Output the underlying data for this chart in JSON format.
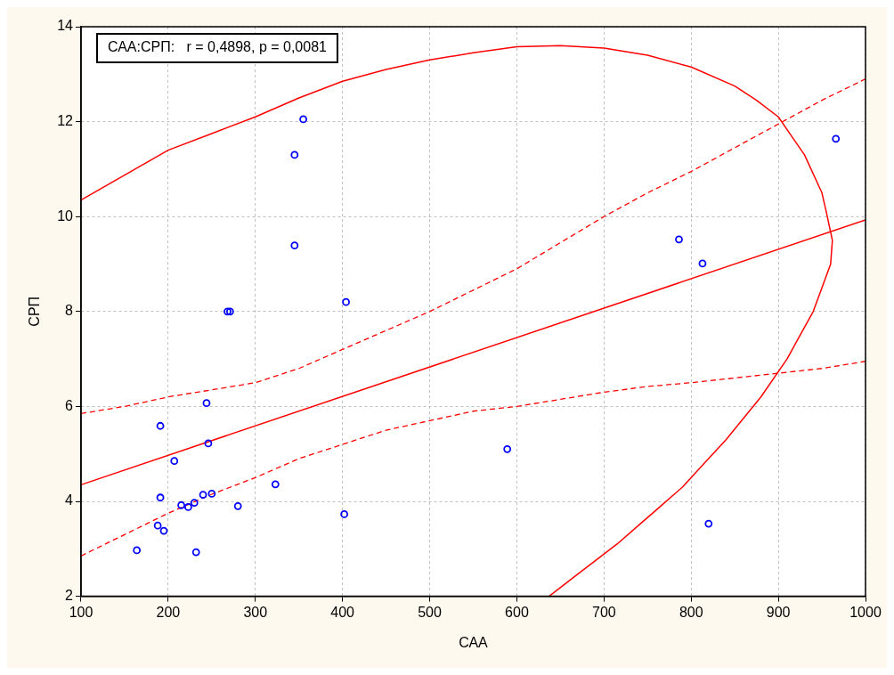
{
  "chart_data": {
    "type": "scatter",
    "xlabel": "САА",
    "ylabel": "СРП",
    "annotations": [
      "САА:СРП:   r = 0,4898, p = 0,0081"
    ],
    "xlim": [
      100,
      1000
    ],
    "xticks": [
      100,
      200,
      300,
      400,
      500,
      600,
      700,
      800,
      900,
      1000
    ],
    "ylim": [
      2,
      14
    ],
    "yticks": [
      2,
      4,
      6,
      8,
      10,
      12,
      14
    ],
    "grid": true,
    "legend": false,
    "series": [
      {
        "color": "#0000ff",
        "marker": "circle",
        "x": [
          164,
          188,
          195,
          191,
          191,
          207,
          215,
          223,
          230,
          232,
          240,
          244,
          246,
          250,
          268,
          271,
          280,
          323,
          345,
          345,
          355,
          402,
          404,
          589,
          786,
          813,
          820,
          966
        ],
        "values": [
          2.97,
          3.49,
          3.38,
          5.59,
          4.08,
          4.85,
          3.92,
          3.88,
          3.97,
          2.93,
          4.14,
          6.07,
          5.22,
          4.16,
          8.0,
          8.0,
          3.9,
          4.36,
          11.3,
          9.39,
          12.05,
          3.73,
          8.2,
          5.1,
          9.52,
          9.01,
          3.53,
          11.64
        ]
      },
      {
        "type": "line",
        "color": "#ff0000",
        "line_style": "solid",
        "x": [
          100,
          1000
        ],
        "values": [
          4.35,
          9.93
        ]
      },
      {
        "type": "line",
        "color": "#ff0000",
        "line_style": "dashed",
        "x": [
          100,
          150,
          200,
          250,
          300,
          350,
          400,
          450,
          500,
          550,
          600,
          650,
          700,
          750,
          800,
          850,
          900,
          950,
          1000
        ],
        "values": [
          5.85,
          6.0,
          6.2,
          6.35,
          6.5,
          6.8,
          7.2,
          7.6,
          8.0,
          8.45,
          8.9,
          9.45,
          10.0,
          10.5,
          10.95,
          11.45,
          11.95,
          12.45,
          12.9
        ]
      },
      {
        "type": "line",
        "color": "#ff0000",
        "line_style": "dashed",
        "x": [
          100,
          150,
          200,
          250,
          300,
          350,
          400,
          450,
          500,
          550,
          600,
          650,
          700,
          750,
          800,
          850,
          900,
          950,
          1000
        ],
        "values": [
          2.85,
          3.3,
          3.75,
          4.15,
          4.5,
          4.9,
          5.2,
          5.5,
          5.7,
          5.9,
          6.0,
          6.15,
          6.3,
          6.42,
          6.5,
          6.6,
          6.7,
          6.8,
          6.95
        ]
      },
      {
        "type": "line",
        "color": "#ff0000",
        "line_style": "solid",
        "x": [
          100,
          200,
          250,
          300,
          350,
          400,
          450,
          500,
          550,
          600,
          650,
          700,
          750,
          800,
          850,
          875,
          900,
          915,
          930,
          950,
          955,
          962,
          960,
          950,
          940,
          925,
          910,
          880,
          840,
          815,
          790,
          765,
          740,
          715,
          690,
          665,
          637
        ],
        "values": [
          10.35,
          11.4,
          11.75,
          12.1,
          12.5,
          12.85,
          13.1,
          13.3,
          13.45,
          13.58,
          13.6,
          13.55,
          13.4,
          13.15,
          12.75,
          12.45,
          12.1,
          11.7,
          11.3,
          10.5,
          10.1,
          9.5,
          9.0,
          8.5,
          8.0,
          7.5,
          7.0,
          6.2,
          5.3,
          4.8,
          4.3,
          3.9,
          3.5,
          3.1,
          2.75,
          2.4,
          2.0
        ]
      }
    ]
  }
}
